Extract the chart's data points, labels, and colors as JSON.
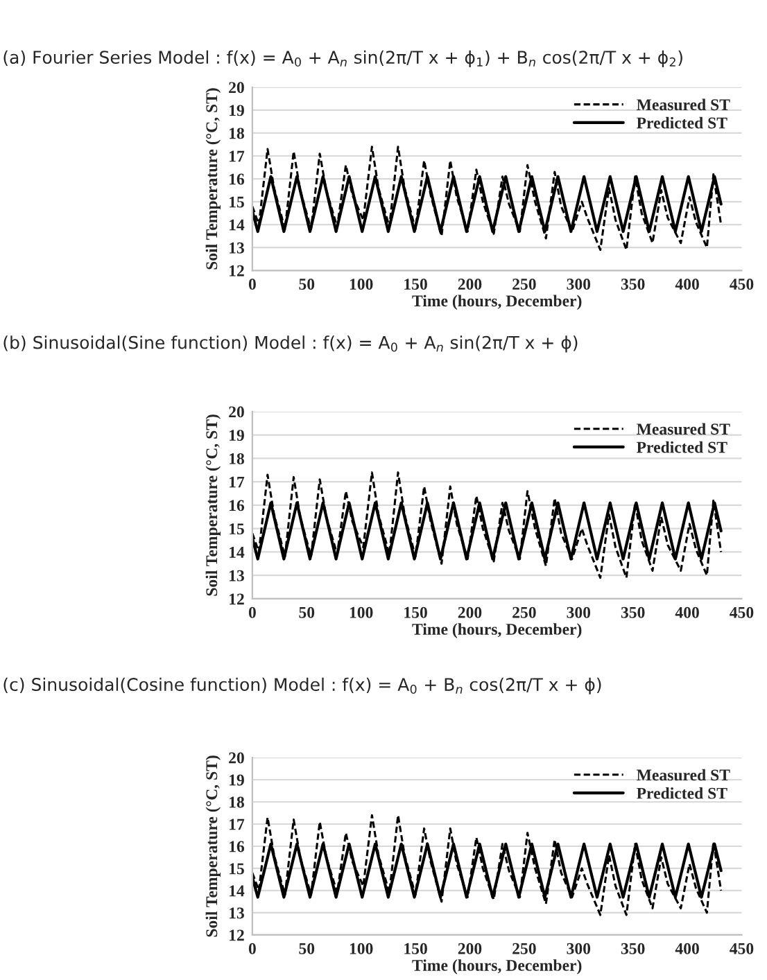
{
  "chart_data": [
    {
      "type": "line",
      "title": "(a) Fourier Series Model : f(x) = A$_{0}$ + A$_{n}$ sin(2π/T x + ϕ$_{1}$) + B$_{n}$ cos(2π/T x + ϕ$_{2}$)",
      "xlabel": "Time (hours, December)",
      "ylabel": "Soil Temperature (°C, ST)",
      "xlim": [
        0,
        450
      ],
      "xticks": [
        0,
        50,
        100,
        150,
        200,
        250,
        300,
        350,
        400,
        450
      ],
      "ylim": [
        12,
        20
      ],
      "yticks": [
        12,
        13,
        14,
        15,
        16,
        17,
        18,
        19,
        20
      ],
      "grid": "y",
      "legend": "top right",
      "series": [
        {
          "name": "Measured ST",
          "color": "#000000",
          "line_style": "dashed",
          "x": [
            0,
            6,
            14,
            20,
            30,
            38,
            44,
            54,
            62,
            68,
            78,
            86,
            92,
            102,
            110,
            116,
            126,
            134,
            140,
            150,
            158,
            164,
            174,
            182,
            188,
            198,
            206,
            212,
            222,
            230,
            236,
            246,
            253,
            260,
            270,
            278,
            284,
            294,
            303,
            308,
            320,
            328,
            334,
            344,
            352,
            358,
            368,
            376,
            382,
            394,
            402,
            408,
            418,
            424,
            431
          ],
          "values": [
            14.8,
            14.0,
            17.3,
            15.6,
            13.8,
            17.2,
            15.5,
            13.8,
            17.1,
            15.5,
            13.9,
            16.6,
            15.3,
            14.2,
            17.4,
            15.6,
            13.9,
            17.4,
            15.6,
            13.8,
            16.8,
            15.3,
            13.5,
            16.8,
            15.2,
            13.7,
            16.4,
            15.0,
            13.6,
            16.1,
            14.9,
            13.7,
            16.6,
            15.0,
            13.4,
            16.3,
            14.8,
            13.7,
            15.0,
            14.3,
            12.9,
            15.6,
            14.2,
            12.9,
            16.1,
            14.5,
            13.2,
            15.5,
            14.3,
            13.2,
            15.2,
            14.1,
            13.0,
            16.2,
            14.0
          ]
        },
        {
          "name": "Predicted ST",
          "color": "#000000",
          "line_style": "solid",
          "x": [
            0,
            5,
            11,
            17,
            23,
            29,
            35,
            41,
            47,
            53,
            59,
            65,
            71,
            77,
            83,
            89,
            95,
            101,
            107,
            113,
            119,
            125,
            131,
            137,
            143,
            149,
            155,
            161,
            167,
            173,
            179,
            185,
            191,
            197,
            203,
            209,
            215,
            221,
            227,
            233,
            239,
            245,
            251,
            257,
            263,
            269,
            275,
            281,
            287,
            293,
            299,
            305,
            311,
            317,
            323,
            329,
            335,
            341,
            347,
            353,
            359,
            365,
            371,
            377,
            383,
            389,
            395,
            401,
            407,
            413,
            419,
            425,
            431
          ],
          "values": [
            14.6,
            13.7,
            14.9,
            16.1,
            14.9,
            13.7,
            14.9,
            16.1,
            14.9,
            13.7,
            14.9,
            16.1,
            14.9,
            13.7,
            14.9,
            16.1,
            14.9,
            13.7,
            14.9,
            16.1,
            14.9,
            13.7,
            14.9,
            16.1,
            14.9,
            13.7,
            14.9,
            16.1,
            14.9,
            13.7,
            14.9,
            16.1,
            14.9,
            13.7,
            14.9,
            16.1,
            14.9,
            13.7,
            14.9,
            16.1,
            14.9,
            13.7,
            14.9,
            16.1,
            14.9,
            13.7,
            14.9,
            16.1,
            14.9,
            13.7,
            14.9,
            16.1,
            14.9,
            13.7,
            14.9,
            16.1,
            14.9,
            13.7,
            14.9,
            16.1,
            14.9,
            13.7,
            14.9,
            16.1,
            14.9,
            13.7,
            14.9,
            16.1,
            14.9,
            13.7,
            14.9,
            16.1,
            14.9
          ]
        }
      ]
    },
    {
      "type": "line",
      "title": "(b) Sinusoidal(Sine function) Model : f(x) = A$_{0}$ + A$_{n}$ sin(2π/T x + ϕ)",
      "xlabel": "Time (hours, December)",
      "ylabel": "Soil Temperature (°C, ST)",
      "xlim": [
        0,
        450
      ],
      "xticks": [
        0,
        50,
        100,
        150,
        200,
        250,
        300,
        350,
        400,
        450
      ],
      "ylim": [
        12,
        20
      ],
      "yticks": [
        12,
        13,
        14,
        15,
        16,
        17,
        18,
        19,
        20
      ],
      "grid": "y",
      "legend": "top right",
      "series": [
        {
          "name": "Measured ST",
          "color": "#000000",
          "line_style": "dashed",
          "x": [
            0,
            6,
            14,
            20,
            30,
            38,
            44,
            54,
            62,
            68,
            78,
            86,
            92,
            102,
            110,
            116,
            126,
            134,
            140,
            150,
            158,
            164,
            174,
            182,
            188,
            198,
            206,
            212,
            222,
            230,
            236,
            246,
            253,
            260,
            270,
            278,
            284,
            294,
            303,
            308,
            320,
            328,
            334,
            344,
            352,
            358,
            368,
            376,
            382,
            394,
            402,
            408,
            418,
            424,
            431
          ],
          "values": [
            14.8,
            14.0,
            17.3,
            15.6,
            13.8,
            17.2,
            15.5,
            13.8,
            17.1,
            15.5,
            13.9,
            16.6,
            15.3,
            14.2,
            17.4,
            15.6,
            13.9,
            17.4,
            15.6,
            13.8,
            16.8,
            15.3,
            13.5,
            16.8,
            15.2,
            13.7,
            16.4,
            15.0,
            13.6,
            16.1,
            14.9,
            13.7,
            16.6,
            15.0,
            13.4,
            16.3,
            14.8,
            13.7,
            15.0,
            14.3,
            12.9,
            15.6,
            14.2,
            12.9,
            16.1,
            14.5,
            13.2,
            15.5,
            14.3,
            13.2,
            15.2,
            14.1,
            13.0,
            16.2,
            14.0
          ]
        },
        {
          "name": "Predicted ST",
          "color": "#000000",
          "line_style": "solid",
          "x": [
            0,
            5,
            11,
            17,
            23,
            29,
            35,
            41,
            47,
            53,
            59,
            65,
            71,
            77,
            83,
            89,
            95,
            101,
            107,
            113,
            119,
            125,
            131,
            137,
            143,
            149,
            155,
            161,
            167,
            173,
            179,
            185,
            191,
            197,
            203,
            209,
            215,
            221,
            227,
            233,
            239,
            245,
            251,
            257,
            263,
            269,
            275,
            281,
            287,
            293,
            299,
            305,
            311,
            317,
            323,
            329,
            335,
            341,
            347,
            353,
            359,
            365,
            371,
            377,
            383,
            389,
            395,
            401,
            407,
            413,
            419,
            425,
            431
          ],
          "values": [
            14.6,
            13.7,
            14.9,
            16.1,
            14.9,
            13.7,
            14.9,
            16.1,
            14.9,
            13.7,
            14.9,
            16.1,
            14.9,
            13.7,
            14.9,
            16.1,
            14.9,
            13.7,
            14.9,
            16.1,
            14.9,
            13.7,
            14.9,
            16.1,
            14.9,
            13.7,
            14.9,
            16.1,
            14.9,
            13.7,
            14.9,
            16.1,
            14.9,
            13.7,
            14.9,
            16.1,
            14.9,
            13.7,
            14.9,
            16.1,
            14.9,
            13.7,
            14.9,
            16.1,
            14.9,
            13.7,
            14.9,
            16.1,
            14.9,
            13.7,
            14.9,
            16.1,
            14.9,
            13.7,
            14.9,
            16.1,
            14.9,
            13.7,
            14.9,
            16.1,
            14.9,
            13.7,
            14.9,
            16.1,
            14.9,
            13.7,
            14.9,
            16.1,
            14.9,
            13.7,
            14.9,
            16.1,
            14.9
          ]
        }
      ]
    },
    {
      "type": "line",
      "title": "(c) Sinusoidal(Cosine function) Model : f(x) = A$_{0}$ + B$_{n}$ cos(2π/T x + ϕ)",
      "xlabel": "Time (hours, December)",
      "ylabel": "Soil Temperature (°C, ST)",
      "xlim": [
        0,
        450
      ],
      "xticks": [
        0,
        50,
        100,
        150,
        200,
        250,
        300,
        350,
        400,
        450
      ],
      "ylim": [
        12,
        20
      ],
      "yticks": [
        12,
        13,
        14,
        15,
        16,
        17,
        18,
        19,
        20
      ],
      "grid": "y",
      "legend": "top right",
      "series": [
        {
          "name": "Measured ST",
          "color": "#000000",
          "line_style": "dashed",
          "x": [
            0,
            6,
            14,
            20,
            30,
            38,
            44,
            54,
            62,
            68,
            78,
            86,
            92,
            102,
            110,
            116,
            126,
            134,
            140,
            150,
            158,
            164,
            174,
            182,
            188,
            198,
            206,
            212,
            222,
            230,
            236,
            246,
            253,
            260,
            270,
            278,
            284,
            294,
            303,
            308,
            320,
            328,
            334,
            344,
            352,
            358,
            368,
            376,
            382,
            394,
            402,
            408,
            418,
            424,
            431
          ],
          "values": [
            14.8,
            14.0,
            17.3,
            15.6,
            13.8,
            17.2,
            15.5,
            13.8,
            17.1,
            15.5,
            13.9,
            16.6,
            15.3,
            14.2,
            17.4,
            15.6,
            13.9,
            17.4,
            15.6,
            13.8,
            16.8,
            15.3,
            13.5,
            16.8,
            15.2,
            13.7,
            16.4,
            15.0,
            13.6,
            16.1,
            14.9,
            13.7,
            16.6,
            15.0,
            13.4,
            16.3,
            14.8,
            13.7,
            15.0,
            14.3,
            12.9,
            15.6,
            14.2,
            12.9,
            16.1,
            14.5,
            13.2,
            15.5,
            14.3,
            13.2,
            15.2,
            14.1,
            13.0,
            16.2,
            14.0
          ]
        },
        {
          "name": "Predicted ST",
          "color": "#000000",
          "line_style": "solid",
          "x": [
            0,
            5,
            11,
            17,
            23,
            29,
            35,
            41,
            47,
            53,
            59,
            65,
            71,
            77,
            83,
            89,
            95,
            101,
            107,
            113,
            119,
            125,
            131,
            137,
            143,
            149,
            155,
            161,
            167,
            173,
            179,
            185,
            191,
            197,
            203,
            209,
            215,
            221,
            227,
            233,
            239,
            245,
            251,
            257,
            263,
            269,
            275,
            281,
            287,
            293,
            299,
            305,
            311,
            317,
            323,
            329,
            335,
            341,
            347,
            353,
            359,
            365,
            371,
            377,
            383,
            389,
            395,
            401,
            407,
            413,
            419,
            425,
            431
          ],
          "values": [
            14.6,
            13.7,
            14.9,
            16.1,
            14.9,
            13.7,
            14.9,
            16.1,
            14.9,
            13.7,
            14.9,
            16.1,
            14.9,
            13.7,
            14.9,
            16.1,
            14.9,
            13.7,
            14.9,
            16.1,
            14.9,
            13.7,
            14.9,
            16.1,
            14.9,
            13.7,
            14.9,
            16.1,
            14.9,
            13.7,
            14.9,
            16.1,
            14.9,
            13.7,
            14.9,
            16.1,
            14.9,
            13.7,
            14.9,
            16.1,
            14.9,
            13.7,
            14.9,
            16.1,
            14.9,
            13.7,
            14.9,
            16.1,
            14.9,
            13.7,
            14.9,
            16.1,
            14.9,
            13.7,
            14.9,
            16.1,
            14.9,
            13.7,
            14.9,
            16.1,
            14.9,
            13.7,
            14.9,
            16.1,
            14.9,
            13.7,
            14.9,
            16.1,
            14.9,
            13.7,
            14.9,
            16.1,
            14.9
          ]
        }
      ]
    }
  ]
}
